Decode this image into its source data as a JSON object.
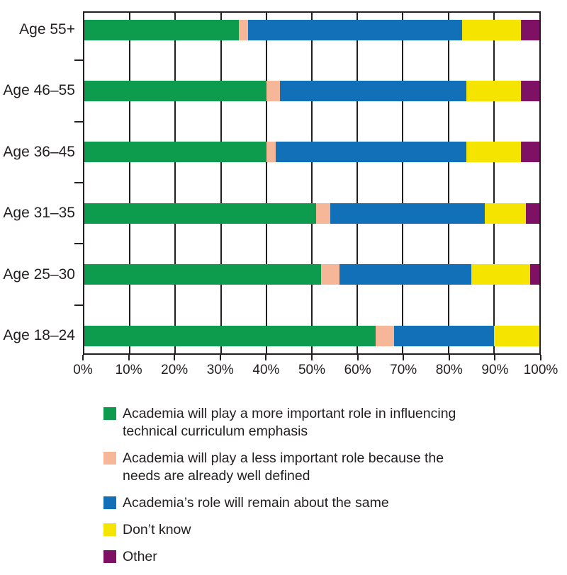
{
  "chart_data": {
    "type": "bar",
    "stacked": true,
    "orientation": "horizontal",
    "title": "",
    "xlabel": "",
    "ylabel": "",
    "xlim": [
      0,
      100
    ],
    "grid": "vertical lines every 10%",
    "legend_position": "below",
    "categories": [
      "Age 55+",
      "Age 46–55",
      "Age 36–45",
      "Age 31–35",
      "Age 25–30",
      "Age 18–24"
    ],
    "x_ticks": [
      "0%",
      "10%",
      "20%",
      "30%",
      "40%",
      "50%",
      "60%",
      "70%",
      "80%",
      "90%",
      "100%"
    ],
    "series": [
      {
        "name": "Academia will play a more important role in influencing technical curriculum emphasis",
        "color": "#0d9b4d",
        "values": [
          34,
          40,
          40,
          51,
          52,
          64
        ]
      },
      {
        "name": "Academia will play a less important role because the needs are already well defined",
        "color": "#f6b698",
        "values": [
          2,
          3,
          2,
          3,
          4,
          4
        ]
      },
      {
        "name": "Academia’s role will remain about the same",
        "color": "#1170b8",
        "values": [
          47,
          41,
          42,
          34,
          29,
          22
        ]
      },
      {
        "name": "Don’t know",
        "color": "#f5e400",
        "values": [
          13,
          12,
          12,
          9,
          13,
          10
        ]
      },
      {
        "name": "Other",
        "color": "#7e1164",
        "values": [
          4,
          4,
          4,
          3,
          2,
          0
        ]
      }
    ]
  },
  "legend": {
    "items": [
      {
        "lines": [
          "Academia will play a more important role in influencing",
          "technical curriculum emphasis"
        ]
      },
      {
        "lines": [
          "Academia will play a less important role because the",
          "needs are already well defined"
        ]
      },
      {
        "lines": [
          "Academia’s role will remain about the same"
        ]
      },
      {
        "lines": [
          "Don’t know"
        ]
      },
      {
        "lines": [
          "Other"
        ]
      }
    ]
  },
  "colors": {
    "axis": "#231f20",
    "text": "#231f20",
    "background": "#ffffff"
  }
}
